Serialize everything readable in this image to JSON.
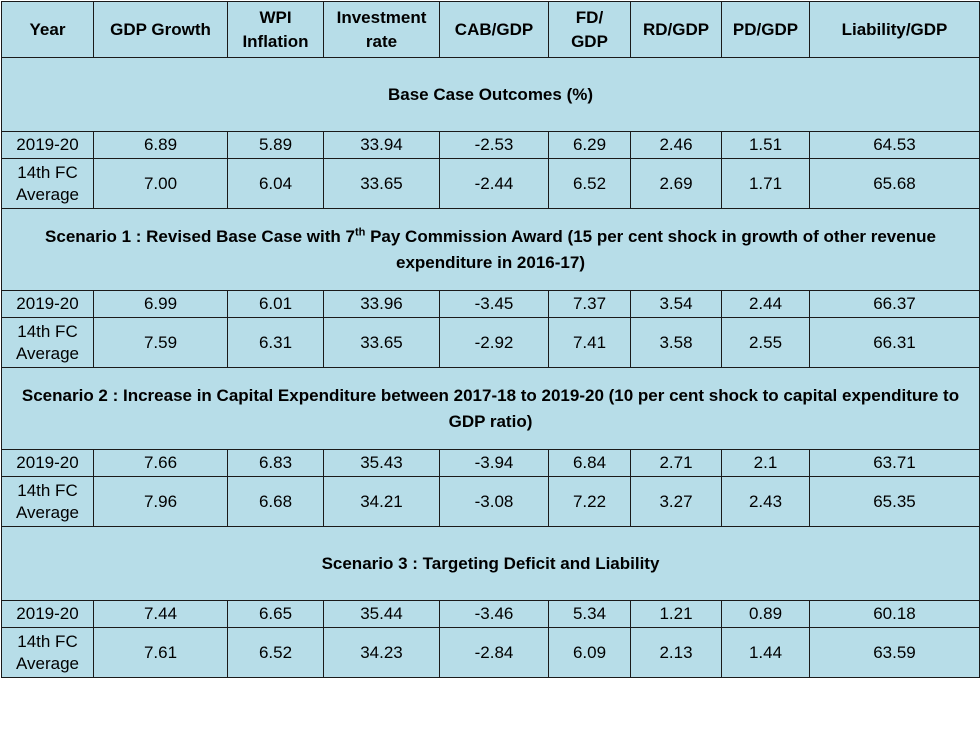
{
  "headers": [
    "Year",
    "GDP Growth",
    "WPI Inflation",
    "Investment rate",
    "CAB/GDP",
    "FD/ GDP",
    "RD/GDP",
    "PD/GDP",
    "Liability/GDP"
  ],
  "header_lines": [
    [
      "Year",
      ""
    ],
    [
      "GDP Growth",
      ""
    ],
    [
      "WPI",
      "Inflation"
    ],
    [
      "Investment",
      "rate"
    ],
    [
      "CAB/GDP",
      ""
    ],
    [
      "FD/",
      "GDP"
    ],
    [
      "RD/GDP",
      ""
    ],
    [
      "PD/GDP",
      ""
    ],
    [
      "Liability/GDP",
      ""
    ]
  ],
  "sections": [
    {
      "title_pre": "Base Case Outcomes (%)",
      "title_sup": "",
      "title_post": "",
      "rows": [
        {
          "year": [
            "2019-20",
            ""
          ],
          "values": [
            "6.89",
            "5.89",
            "33.94",
            "-2.53",
            "6.29",
            "2.46",
            "1.51",
            "64.53"
          ]
        },
        {
          "year": [
            "14th FC",
            "Average"
          ],
          "values": [
            "7.00",
            "6.04",
            "33.65",
            "-2.44",
            "6.52",
            "2.69",
            "1.71",
            "65.68"
          ]
        }
      ]
    },
    {
      "title_pre": "Scenario 1 : Revised Base Case with 7",
      "title_sup": "th",
      "title_post": " Pay Commission Award (15 per cent shock in growth of other revenue expenditure in 2016-17)",
      "rows": [
        {
          "year": [
            "2019-20",
            ""
          ],
          "values": [
            "6.99",
            "6.01",
            "33.96",
            "-3.45",
            "7.37",
            "3.54",
            "2.44",
            "66.37"
          ]
        },
        {
          "year": [
            "14th FC",
            "Average"
          ],
          "values": [
            "7.59",
            "6.31",
            "33.65",
            "-2.92",
            "7.41",
            "3.58",
            "2.55",
            "66.31"
          ]
        }
      ]
    },
    {
      "title_pre": "Scenario 2 : Increase in Capital Expenditure between 2017-18 to 2019-20 (10 per cent shock to capital expenditure to GDP ratio)",
      "title_sup": "",
      "title_post": "",
      "rows": [
        {
          "year": [
            "2019-20",
            ""
          ],
          "values": [
            "7.66",
            "6.83",
            "35.43",
            "-3.94",
            "6.84",
            "2.71",
            "2.1",
            "63.71"
          ]
        },
        {
          "year": [
            "14th FC",
            "Average"
          ],
          "values": [
            "7.96",
            "6.68",
            "34.21",
            "-3.08",
            "7.22",
            "3.27",
            "2.43",
            "65.35"
          ]
        }
      ]
    },
    {
      "title_pre": "Scenario 3 : Targeting Deficit and Liability",
      "title_sup": "",
      "title_post": "",
      "rows": [
        {
          "year": [
            "2019-20",
            ""
          ],
          "values": [
            "7.44",
            "6.65",
            "35.44",
            "-3.46",
            "5.34",
            "1.21",
            "0.89",
            "60.18"
          ]
        },
        {
          "year": [
            "14th FC",
            "Average"
          ],
          "values": [
            "7.61",
            "6.52",
            "34.23",
            "-2.84",
            "6.09",
            "2.13",
            "1.44",
            "63.59"
          ]
        }
      ]
    }
  ]
}
